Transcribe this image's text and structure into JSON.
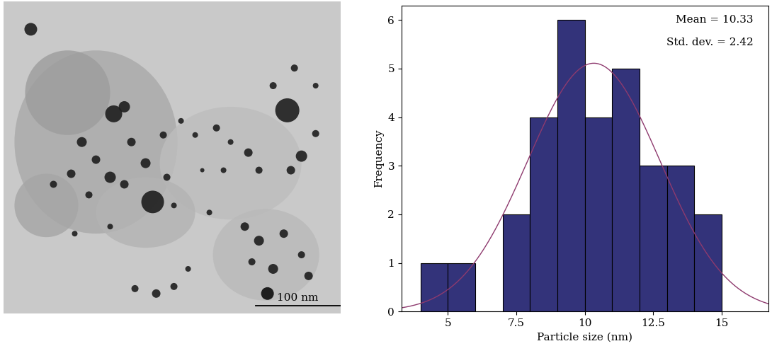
{
  "image": {
    "type": "image",
    "scale_bar_label": "100 nm"
  },
  "chart_data": {
    "type": "histogram",
    "x_label": "Particle size (nm)",
    "y_label": "Frequency",
    "bins": [
      4,
      5,
      6,
      7,
      8,
      9,
      10,
      11,
      12,
      13,
      14,
      15
    ],
    "counts": [
      1,
      1,
      0,
      2,
      4,
      6,
      4,
      5,
      3,
      3,
      2
    ],
    "color": "#33337a",
    "fit": {
      "mean": 10.33,
      "std_dev": 2.42,
      "color": "#8e3a6e"
    },
    "annotations": [
      "Mean = 10.33",
      "Std. dev. = 2.42"
    ],
    "xlim": [
      3.3,
      16.7
    ],
    "xticks": [
      5,
      7.5,
      10,
      12.5,
      15
    ],
    "ylim": [
      0,
      6.3
    ],
    "yticks": [
      0,
      1,
      2,
      3,
      4,
      5,
      6
    ],
    "grid": false
  }
}
